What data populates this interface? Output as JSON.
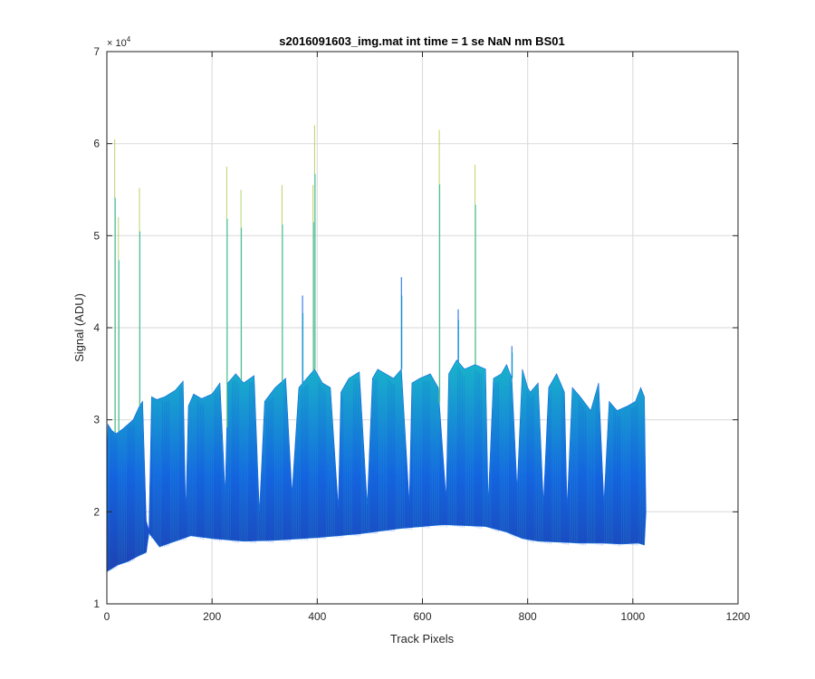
{
  "chart_data": {
    "type": "area",
    "title": "s2016091603_img.mat int time = 1 se  NaN nm BS01",
    "xlabel": "Track Pixels",
    "ylabel": "Signal (ADU)",
    "xlim": [
      0,
      1200
    ],
    "ylim": [
      10000,
      70000
    ],
    "x_ticks": [
      0,
      200,
      400,
      600,
      800,
      1000,
      1200
    ],
    "y_ticks": [
      1,
      2,
      3,
      4,
      5,
      6,
      7
    ],
    "x_tick_labels": [
      "0",
      "200",
      "400",
      "600",
      "800",
      "1000",
      "1200"
    ],
    "y_tick_labels": [
      "1",
      "2",
      "3",
      "4",
      "5",
      "6",
      "7"
    ],
    "y_exponent_base": "× 10",
    "y_exponent": "4",
    "grid": true,
    "colors": {
      "low": "#1f3fb0",
      "mid": "#1565e0",
      "high": "#19b7c9",
      "spike": "#b9d46a"
    },
    "upper_envelope": {
      "x": [
        0,
        2,
        10,
        18,
        30,
        50,
        62,
        68,
        75,
        80,
        85,
        95,
        110,
        130,
        145,
        150,
        155,
        165,
        180,
        200,
        215,
        225,
        230,
        245,
        260,
        280,
        290,
        300,
        320,
        340,
        352,
        365,
        380,
        395,
        410,
        425,
        440,
        445,
        460,
        480,
        495,
        505,
        515,
        530,
        545,
        560,
        575,
        580,
        595,
        615,
        630,
        645,
        650,
        665,
        680,
        700,
        720,
        725,
        735,
        750,
        760,
        770,
        780,
        790,
        800,
        805,
        820,
        830,
        840,
        855,
        870,
        875,
        885,
        900,
        920,
        935,
        945,
        955,
        970,
        990,
        1005,
        1015,
        1022,
        1025
      ],
      "y": [
        23000,
        29500,
        28800,
        28500,
        29000,
        30000,
        31500,
        32000,
        19000,
        18000,
        32500,
        32200,
        32500,
        33200,
        34200,
        20000,
        31500,
        32800,
        32300,
        32800,
        34000,
        22000,
        34000,
        35000,
        34000,
        34800,
        20000,
        32000,
        33500,
        34500,
        22000,
        33500,
        34500,
        35500,
        34000,
        33500,
        20500,
        33000,
        34500,
        35200,
        20800,
        34500,
        35500,
        35000,
        34500,
        35500,
        21000,
        34000,
        34500,
        35000,
        33500,
        21500,
        35000,
        36500,
        35500,
        36000,
        35500,
        21000,
        34500,
        35000,
        36000,
        34500,
        22500,
        35500,
        33500,
        33000,
        34000,
        21000,
        33500,
        35000,
        33000,
        20500,
        33500,
        32500,
        31000,
        34000,
        21000,
        32000,
        31000,
        31500,
        32000,
        33500,
        32500,
        20000
      ]
    },
    "lower_envelope": {
      "x": [
        0,
        20,
        40,
        60,
        75,
        80,
        100,
        130,
        160,
        200,
        260,
        320,
        400,
        480,
        560,
        640,
        720,
        760,
        790,
        820,
        860,
        900,
        940,
        980,
        1010,
        1022
      ],
      "y": [
        13500,
        14200,
        14600,
        15200,
        15600,
        17700,
        16200,
        16800,
        17400,
        17100,
        16800,
        16900,
        17200,
        17600,
        18200,
        18600,
        18400,
        17800,
        17100,
        16800,
        16700,
        16600,
        16600,
        16500,
        16600,
        16400
      ]
    },
    "spikes": [
      {
        "x": 15,
        "y": 60500
      },
      {
        "x": 22,
        "y": 52000
      },
      {
        "x": 62,
        "y": 55200
      },
      {
        "x": 228,
        "y": 57500
      },
      {
        "x": 255,
        "y": 55000
      },
      {
        "x": 333,
        "y": 55500
      },
      {
        "x": 372,
        "y": 43500
      },
      {
        "x": 392,
        "y": 55500
      },
      {
        "x": 395,
        "y": 62000
      },
      {
        "x": 560,
        "y": 45500
      },
      {
        "x": 632,
        "y": 61500
      },
      {
        "x": 668,
        "y": 42000
      },
      {
        "x": 700,
        "y": 57700
      },
      {
        "x": 770,
        "y": 38000
      }
    ]
  }
}
